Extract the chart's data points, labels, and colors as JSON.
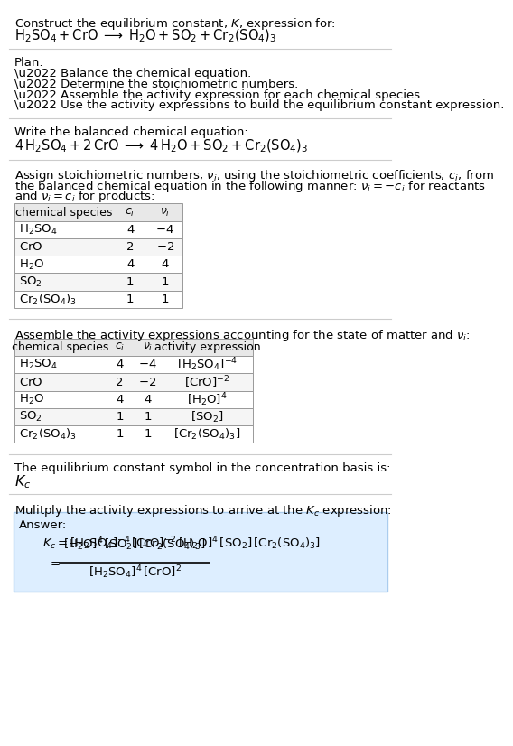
{
  "title_line1": "Construct the equilibrium constant, $K$, expression for:",
  "title_line2": "$\\mathrm{H_2SO_4 + CrO \\;\\longrightarrow\\; H_2O + SO_2 + Cr_2(SO_4)_3}$",
  "plan_header": "Plan:",
  "plan_bullets": [
    "\\u2022 Balance the chemical equation.",
    "\\u2022 Determine the stoichiometric numbers.",
    "\\u2022 Assemble the activity expression for each chemical species.",
    "\\u2022 Use the activity expressions to build the equilibrium constant expression."
  ],
  "balanced_header": "Write the balanced chemical equation:",
  "balanced_eq": "$\\mathrm{4\\,H_2SO_4 + 2\\,CrO \\;\\longrightarrow\\; 4\\,H_2O + SO_2 + Cr_2(SO_4)_3}$",
  "stoich_lines": [
    "Assign stoichiometric numbers, $\\nu_i$, using the stoichiometric coefficients, $c_i$, from",
    "the balanced chemical equation in the following manner: $\\nu_i = -c_i$ for reactants",
    "and $\\nu_i = c_i$ for products:"
  ],
  "table1_headers": [
    "chemical species",
    "$c_i$",
    "$\\nu_i$"
  ],
  "table1_rows": [
    [
      "$\\mathrm{H_2SO_4}$",
      "4",
      "$-4$"
    ],
    [
      "$\\mathrm{CrO}$",
      "2",
      "$-2$"
    ],
    [
      "$\\mathrm{H_2O}$",
      "4",
      "4"
    ],
    [
      "$\\mathrm{SO_2}$",
      "1",
      "1"
    ],
    [
      "$\\mathrm{Cr_2(SO_4)_3}$",
      "1",
      "1"
    ]
  ],
  "activity_header": "Assemble the activity expressions accounting for the state of matter and $\\nu_i$:",
  "table2_headers": [
    "chemical species",
    "$c_i$",
    "$\\nu_i$",
    "activity expression"
  ],
  "table2_rows": [
    [
      "$\\mathrm{H_2SO_4}$",
      "4",
      "$-4$",
      "$[\\mathrm{H_2SO_4}]^{-4}$"
    ],
    [
      "$\\mathrm{CrO}$",
      "2",
      "$-2$",
      "$[\\mathrm{CrO}]^{-2}$"
    ],
    [
      "$\\mathrm{H_2O}$",
      "4",
      "4",
      "$[\\mathrm{H_2O}]^{4}$"
    ],
    [
      "$\\mathrm{SO_2}$",
      "1",
      "1",
      "$[\\mathrm{SO_2}]$"
    ],
    [
      "$\\mathrm{Cr_2(SO_4)_3}$",
      "1",
      "1",
      "$[\\mathrm{Cr_2(SO_4)_3}]$"
    ]
  ],
  "kc_header": "The equilibrium constant symbol in the concentration basis is:",
  "kc_symbol": "$K_c$",
  "multiply_header": "Mulitply the activity expressions to arrive at the $K_c$ expression:",
  "answer_label": "Answer:",
  "kc_line1": "$K_c = [\\mathrm{H_2SO_4}]^{-4}\\,[\\mathrm{CrO}]^{-2}\\,[\\mathrm{H_2O}]^{4}\\,[\\mathrm{SO_2}]\\,[\\mathrm{Cr_2(SO_4)_3}]$",
  "answer_numerator": "$[\\mathrm{H_2O}]^{4}\\,[\\mathrm{SO_2}]\\,[\\mathrm{Cr_2(SO_4)_3}]$",
  "answer_denominator": "$[\\mathrm{H_2SO_4}]^{4}\\,[\\mathrm{CrO}]^{2}$",
  "bg_color": "#ffffff",
  "answer_bg": "#ddeeff",
  "answer_border": "#aaccee",
  "header_bg": "#e8e8e8",
  "row_alt_bg": "#f5f5f5",
  "table_border": "#999999",
  "sep_color": "#cccccc",
  "font_size": 9.5
}
